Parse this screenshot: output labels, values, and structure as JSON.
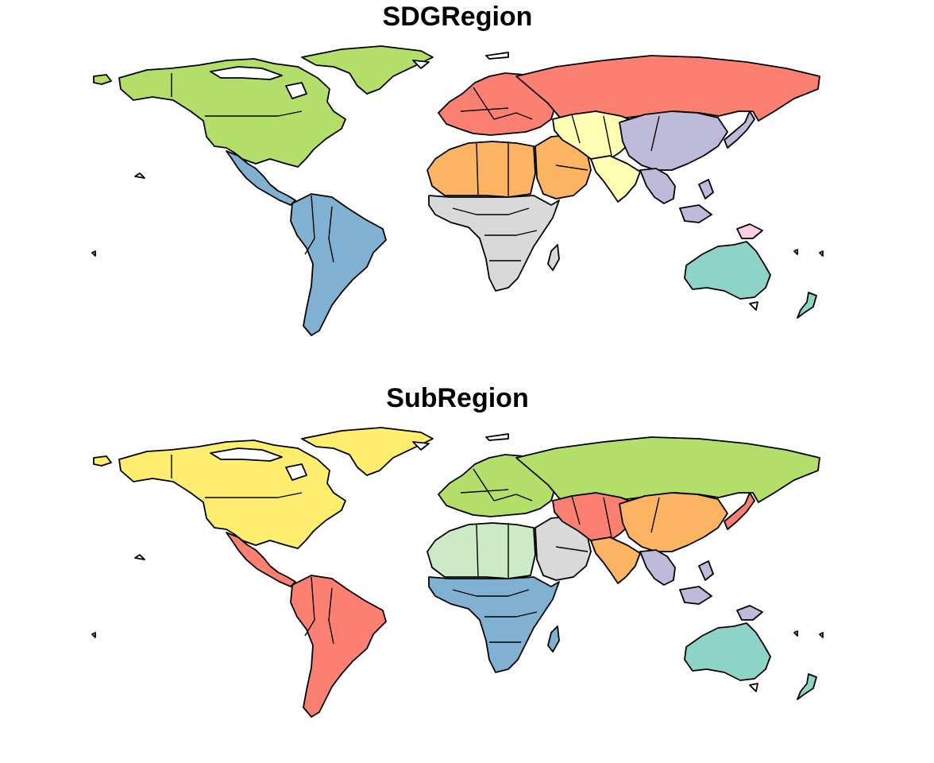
{
  "maps": [
    {
      "id": "sdg",
      "title": "SDGRegion",
      "colors": {
        "north_america": "#B3DE69",
        "latin_america": "#80B1D3",
        "europe": "#FB8072",
        "russia": "#FB8072",
        "north_africa": "#FDB462",
        "middle_east": "#FDB462",
        "sub_saharan_africa": "#D9D9D9",
        "central_asia": "#FFFFB3",
        "south_asia": "#FFFFB3",
        "east_asia": "#BEBADA",
        "southeast_asia": "#BEBADA",
        "japan": "#BEBADA",
        "oceania": "#8DD3C7",
        "new_zealand": "#8DD3C7",
        "greenland": "#B3DE69",
        "papua": "#FCCDE5"
      }
    },
    {
      "id": "sub",
      "title": "SubRegion",
      "colors": {
        "north_america": "#FFED6F",
        "latin_america": "#FB8072",
        "europe": "#B3DE69",
        "russia": "#B3DE69",
        "north_africa": "#CCEBC5",
        "middle_east": "#D9D9D9",
        "sub_saharan_africa": "#80B1D3",
        "central_asia": "#FB8072",
        "south_asia": "#FDB462",
        "east_asia": "#FDB462",
        "southeast_asia": "#BEBADA",
        "japan": "#FB8072",
        "oceania": "#8DD3C7",
        "new_zealand": "#8DD3C7",
        "greenland": "#FFED6F",
        "papua": "#BEBADA"
      }
    }
  ]
}
